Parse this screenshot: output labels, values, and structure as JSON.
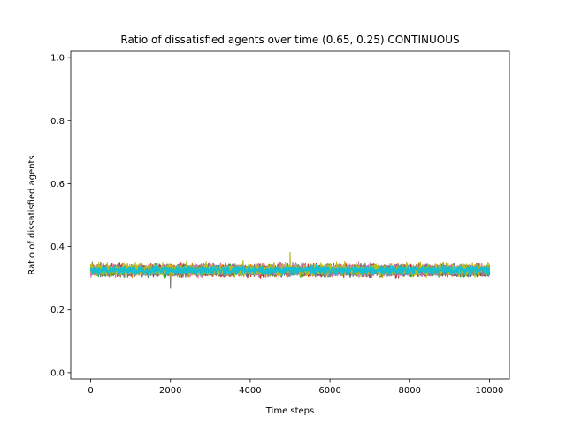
{
  "chart_data": {
    "type": "line",
    "title": "Ratio of dissatisfied agents over time (0.65, 0.25) CONTINUOUS",
    "xlabel": "Time steps",
    "ylabel": "Ratio of dissatisfied agents",
    "xlim": [
      -500,
      10500
    ],
    "ylim": [
      -0.02,
      1.02
    ],
    "xticks": [
      0,
      2000,
      4000,
      6000,
      8000,
      10000
    ],
    "xtick_labels": [
      "0",
      "2000",
      "4000",
      "6000",
      "8000",
      "10000"
    ],
    "yticks": [
      0.0,
      0.2,
      0.4,
      0.6,
      0.8,
      1.0
    ],
    "ytick_labels": [
      "0.0",
      "0.2",
      "0.4",
      "0.6",
      "0.8",
      "1.0"
    ],
    "grid": false,
    "legend": "none",
    "x_range": [
      0,
      10000
    ],
    "series": [
      {
        "color": "#1f77b4",
        "mean": 0.325,
        "amplitude": 0.025
      },
      {
        "color": "#ff7f0e",
        "mean": 0.325,
        "amplitude": 0.027
      },
      {
        "color": "#2ca02c",
        "mean": 0.325,
        "amplitude": 0.026
      },
      {
        "color": "#d62728",
        "mean": 0.325,
        "amplitude": 0.027
      },
      {
        "color": "#9467bd",
        "mean": 0.325,
        "amplitude": 0.025
      },
      {
        "color": "#8c564b",
        "mean": 0.325,
        "amplitude": 0.026
      },
      {
        "color": "#e377c2",
        "mean": 0.325,
        "amplitude": 0.027
      },
      {
        "color": "#7f7f7f",
        "mean": 0.325,
        "amplitude": 0.026
      },
      {
        "color": "#bcbd22",
        "mean": 0.327,
        "amplitude": 0.028
      },
      {
        "color": "#17becf",
        "mean": 0.325,
        "amplitude": 0.02
      }
    ]
  }
}
